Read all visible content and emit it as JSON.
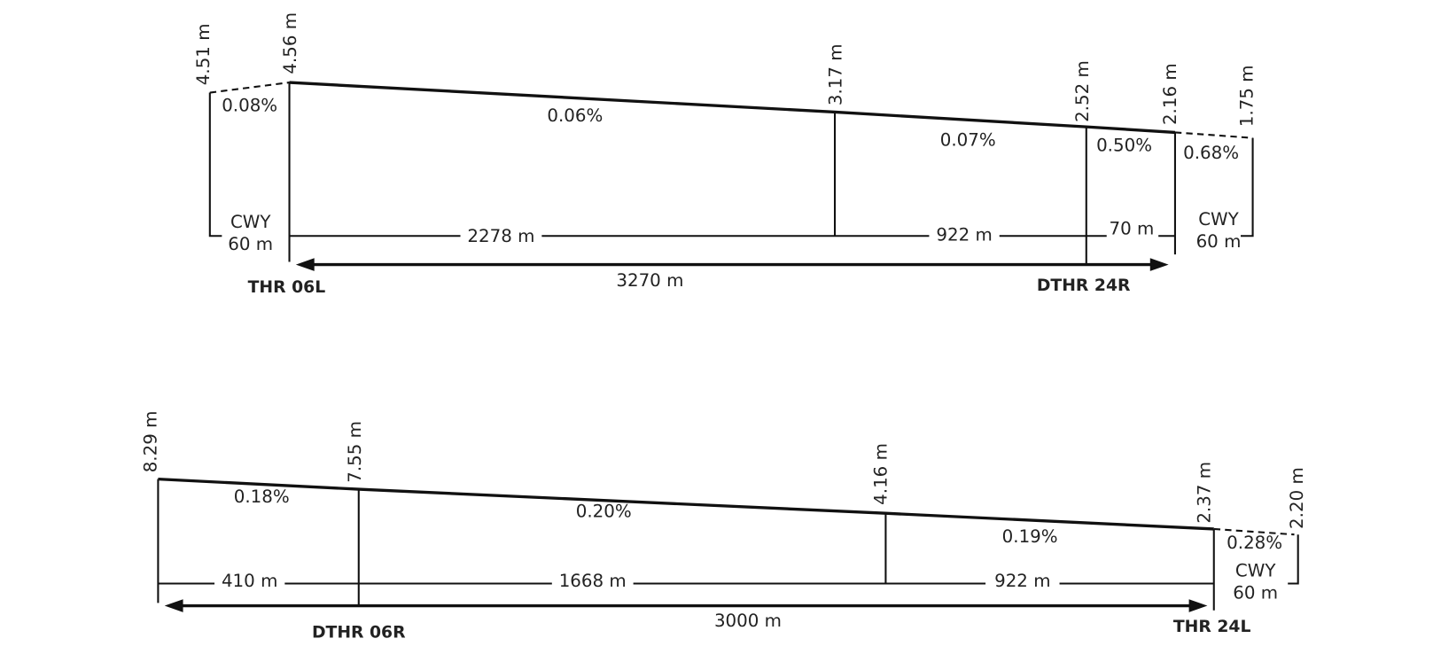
{
  "profiles": [
    {
      "elevations": [
        "4.51 m",
        "4.56 m",
        "3.17 m",
        "2.52 m",
        "2.16 m",
        "1.75 m"
      ],
      "slopes": [
        "0.08%",
        "0.06%",
        "0.07%",
        "0.50%",
        "0.68%"
      ],
      "distances": [
        "2278 m",
        "922 m",
        "70 m"
      ],
      "clearways": [
        {
          "label": "CWY",
          "length": "60 m"
        },
        {
          "label": "CWY",
          "length": "60 m"
        }
      ],
      "total": "3270 m",
      "thresholds": [
        "THR 06L",
        "DTHR 24R"
      ]
    },
    {
      "elevations": [
        "8.29 m",
        "7.55 m",
        "4.16 m",
        "2.37 m",
        "2.20 m"
      ],
      "slopes": [
        "0.18%",
        "0.20%",
        "0.19%",
        "0.28%"
      ],
      "distances": [
        "410 m",
        "1668 m",
        "922 m"
      ],
      "clearways": [
        {
          "label": "CWY",
          "length": "60 m"
        }
      ],
      "total": "3000 m",
      "thresholds": [
        "DTHR 06R",
        "THR 24L"
      ]
    }
  ]
}
